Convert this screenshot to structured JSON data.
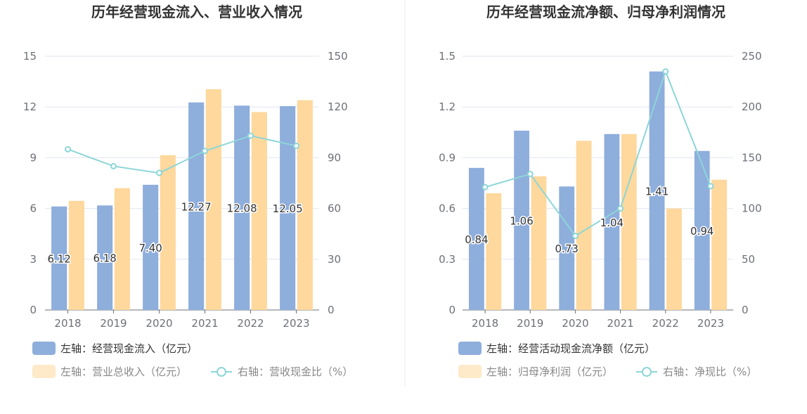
{
  "chart_data": [
    {
      "type": "bar",
      "title": "历年经营现金流入、营业收入情况",
      "categories": [
        "2018",
        "2019",
        "2020",
        "2021",
        "2022",
        "2023"
      ],
      "left_axis": {
        "min": 0,
        "max": 15,
        "ticks": [
          "0",
          "3",
          "6",
          "9",
          "12",
          "15"
        ]
      },
      "right_axis": {
        "min": 0,
        "max": 150,
        "ticks": [
          "0",
          "30",
          "60",
          "90",
          "120",
          "150"
        ]
      },
      "grid": true,
      "legend_position": "bottom-left",
      "series": [
        {
          "name": "左轴：经营现金流入（亿元）",
          "type": "bar",
          "axis": "left",
          "color": "#8eaedc",
          "values": [
            6.12,
            6.18,
            7.4,
            12.27,
            12.08,
            12.05
          ],
          "labels": [
            "6.12",
            "6.18",
            "7.40",
            "12.27",
            "12.08",
            "12.05"
          ]
        },
        {
          "name": "左轴：营业总收入（亿元）",
          "type": "bar",
          "axis": "left",
          "color": "#fed89c",
          "values": [
            6.45,
            7.2,
            9.15,
            13.05,
            11.7,
            12.4
          ]
        },
        {
          "name": "右轴：营收现金比（%）",
          "type": "line",
          "axis": "right",
          "color": "#8dd6d8",
          "values": [
            95,
            85,
            81,
            94,
            103,
            97
          ]
        }
      ]
    },
    {
      "type": "bar",
      "title": "历年经营现金流净额、归母净利润情况",
      "categories": [
        "2018",
        "2019",
        "2020",
        "2021",
        "2022",
        "2023"
      ],
      "left_axis": {
        "min": 0,
        "max": 1.5,
        "ticks": [
          "0",
          "0.3",
          "0.6",
          "0.9",
          "1.2",
          "1.5"
        ]
      },
      "right_axis": {
        "min": 0,
        "max": 250,
        "ticks": [
          "0",
          "50",
          "100",
          "150",
          "200",
          "250"
        ]
      },
      "grid": true,
      "legend_position": "bottom-left",
      "series": [
        {
          "name": "左轴：经营活动现金流净额（亿元）",
          "type": "bar",
          "axis": "left",
          "color": "#8eaedc",
          "values": [
            0.84,
            1.06,
            0.73,
            1.04,
            1.41,
            0.94
          ],
          "labels": [
            "0.84",
            "1.06",
            "0.73",
            "1.04",
            "1.41",
            "0.94"
          ]
        },
        {
          "name": "左轴：归母净利润（亿元）",
          "type": "bar",
          "axis": "left",
          "color": "#fed89c",
          "values": [
            0.69,
            0.79,
            1.0,
            1.04,
            0.6,
            0.77
          ]
        },
        {
          "name": "右轴：净现比（%）",
          "type": "line",
          "axis": "right",
          "color": "#8dd6d8",
          "values": [
            121,
            134,
            73,
            100,
            235,
            122
          ]
        }
      ]
    }
  ]
}
